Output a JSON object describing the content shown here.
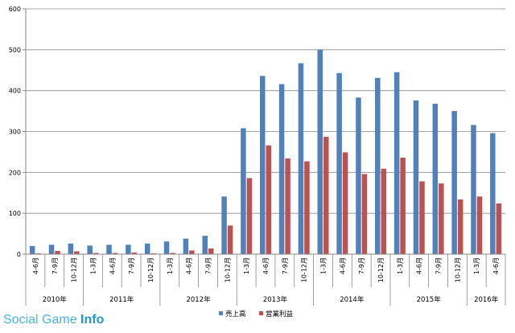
{
  "chart_data": {
    "type": "bar",
    "categories": [
      "4-6月",
      "7-9月",
      "10-12月",
      "1-3月",
      "4-6月",
      "7-9月",
      "10-12月",
      "1-3月",
      "4-6月",
      "7-9月",
      "10-12月",
      "1-3月",
      "4-6月",
      "7-9月",
      "10-12月",
      "1-3月",
      "4-6月",
      "7-9月",
      "10-12月",
      "1-3月",
      "4-6月",
      "7-9月",
      "10-12月",
      "1-3月",
      "4-6月"
    ],
    "year_groups": [
      {
        "label": "2010年",
        "count": 3
      },
      {
        "label": "2011年",
        "count": 4
      },
      {
        "label": "2012年",
        "count": 4
      },
      {
        "label": "2013年",
        "count": 4
      },
      {
        "label": "2014年",
        "count": 4
      },
      {
        "label": "2015年",
        "count": 4
      },
      {
        "label": "2016年",
        "count": 2
      }
    ],
    "series": [
      {
        "name": "売上高",
        "color": "#4f81bd",
        "values": [
          20,
          23,
          26,
          21,
          23,
          23,
          26,
          31,
          38,
          45,
          141,
          308,
          436,
          416,
          467,
          500,
          443,
          383,
          431,
          445,
          376,
          368,
          350,
          316,
          296
        ]
      },
      {
        "name": "営業利益",
        "color": "#c0504d",
        "values": [
          2,
          8,
          7,
          3,
          3,
          4,
          2,
          3,
          9,
          14,
          70,
          186,
          266,
          234,
          227,
          287,
          249,
          196,
          209,
          236,
          178,
          173,
          134,
          141,
          124
        ]
      }
    ],
    "title": "",
    "xlabel": "",
    "ylabel": "",
    "ylim": [
      0,
      600
    ],
    "yticks": [
      0,
      100,
      200,
      300,
      400,
      500,
      600
    ],
    "grid": true,
    "legend_position": "bottom"
  },
  "watermark": {
    "text": "Social Game ",
    "brand": "Info"
  }
}
